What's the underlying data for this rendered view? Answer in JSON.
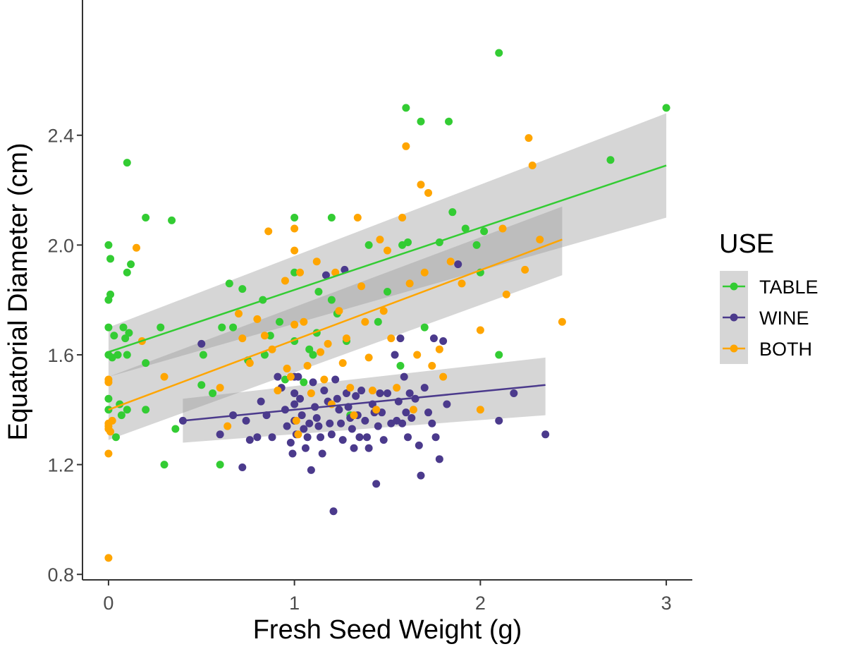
{
  "chart_data": {
    "type": "scatter",
    "title": "",
    "xlabel": "Fresh Seed Weight (g)",
    "ylabel": "Equatorial Diameter (cm)",
    "xlim": [
      -0.14,
      3.14
    ],
    "ylim": [
      0.78,
      2.88
    ],
    "x_ticks": [
      0,
      1,
      2,
      3
    ],
    "x_tick_labels": [
      "0",
      "1",
      "2",
      "3"
    ],
    "y_ticks": [
      0.8,
      1.2,
      1.6,
      2.0,
      2.4
    ],
    "y_tick_labels": [
      "0.8",
      "1.2",
      "1.6",
      "2.0",
      "2.4"
    ],
    "grid": false,
    "legend": {
      "title": "USE",
      "placement": "right"
    },
    "series": [
      {
        "name": "TABLE",
        "color": "#33cc33",
        "trend": {
          "x": [
            0,
            3.0
          ],
          "y": [
            1.61,
            2.29
          ]
        },
        "band": {
          "x": [
            0,
            3.0
          ],
          "lower": [
            1.52,
            2.1
          ],
          "upper": [
            1.7,
            2.48
          ]
        },
        "points": [
          [
            0,
            2.0
          ],
          [
            0,
            1.8
          ],
          [
            0,
            1.7
          ],
          [
            0,
            1.6
          ],
          [
            0,
            1.44
          ],
          [
            0,
            1.4
          ],
          [
            0.01,
            1.95
          ],
          [
            0.01,
            1.82
          ],
          [
            0.02,
            1.59
          ],
          [
            0.03,
            1.67
          ],
          [
            0.04,
            1.3
          ],
          [
            0.05,
            1.6
          ],
          [
            0.06,
            1.42
          ],
          [
            0.07,
            1.38
          ],
          [
            0.08,
            1.7
          ],
          [
            0.09,
            1.66
          ],
          [
            0.1,
            1.9
          ],
          [
            0.1,
            2.3
          ],
          [
            0.1,
            1.6
          ],
          [
            0.1,
            1.4
          ],
          [
            0.11,
            1.68
          ],
          [
            0.12,
            1.93
          ],
          [
            0.2,
            2.1
          ],
          [
            0.2,
            1.57
          ],
          [
            0.2,
            1.4
          ],
          [
            0.28,
            1.7
          ],
          [
            0.3,
            1.2
          ],
          [
            0.34,
            2.09
          ],
          [
            0.36,
            1.33
          ],
          [
            0.5,
            1.49
          ],
          [
            0.51,
            1.6
          ],
          [
            0.56,
            1.46
          ],
          [
            0.6,
            1.2
          ],
          [
            0.61,
            1.7
          ],
          [
            0.65,
            1.86
          ],
          [
            0.67,
            1.7
          ],
          [
            0.72,
            1.84
          ],
          [
            0.75,
            1.58
          ],
          [
            0.83,
            1.8
          ],
          [
            0.84,
            1.6
          ],
          [
            0.87,
            1.67
          ],
          [
            0.92,
            1.72
          ],
          [
            0.95,
            1.51
          ],
          [
            1.0,
            2.1
          ],
          [
            1.0,
            1.9
          ],
          [
            1.0,
            1.65
          ],
          [
            1.05,
            1.5
          ],
          [
            1.08,
            1.62
          ],
          [
            1.1,
            1.6
          ],
          [
            1.12,
            1.68
          ],
          [
            1.13,
            1.83
          ],
          [
            1.2,
            2.1
          ],
          [
            1.2,
            1.8
          ],
          [
            1.23,
            1.75
          ],
          [
            1.28,
            1.65
          ],
          [
            1.3,
            1.38
          ],
          [
            1.4,
            2.0
          ],
          [
            1.45,
            1.72
          ],
          [
            1.5,
            1.83
          ],
          [
            1.57,
            1.56
          ],
          [
            1.58,
            2.0
          ],
          [
            1.6,
            2.5
          ],
          [
            1.61,
            2.01
          ],
          [
            1.68,
            2.45
          ],
          [
            1.7,
            1.7
          ],
          [
            1.78,
            2.01
          ],
          [
            1.83,
            2.45
          ],
          [
            1.85,
            2.12
          ],
          [
            1.92,
            2.06
          ],
          [
            1.98,
            2.0
          ],
          [
            2.0,
            1.9
          ],
          [
            2.02,
            2.05
          ],
          [
            2.1,
            2.7
          ],
          [
            2.1,
            1.6
          ],
          [
            2.7,
            2.31
          ],
          [
            3.0,
            2.5
          ]
        ]
      },
      {
        "name": "WINE",
        "color": "#4b3a8c",
        "trend": {
          "x": [
            0.4,
            2.35
          ],
          "y": [
            1.36,
            1.49
          ]
        },
        "band": {
          "x": [
            0.4,
            2.35
          ],
          "lower": [
            1.28,
            1.38
          ],
          "upper": [
            1.44,
            1.59
          ]
        },
        "points": [
          [
            0.4,
            1.36
          ],
          [
            0.5,
            1.64
          ],
          [
            0.6,
            1.31
          ],
          [
            0.67,
            1.38
          ],
          [
            0.72,
            1.19
          ],
          [
            0.74,
            1.36
          ],
          [
            0.76,
            1.29
          ],
          [
            0.8,
            1.3
          ],
          [
            0.82,
            1.43
          ],
          [
            0.85,
            1.38
          ],
          [
            0.88,
            1.3
          ],
          [
            0.91,
            1.52
          ],
          [
            0.93,
            1.48
          ],
          [
            0.95,
            1.4
          ],
          [
            0.96,
            1.34
          ],
          [
            0.98,
            1.28
          ],
          [
            0.99,
            1.24
          ],
          [
            1.0,
            1.52
          ],
          [
            1.0,
            1.46
          ],
          [
            1.0,
            1.42
          ],
          [
            1.0,
            1.36
          ],
          [
            1.01,
            1.31
          ],
          [
            1.02,
            1.52
          ],
          [
            1.03,
            1.44
          ],
          [
            1.04,
            1.38
          ],
          [
            1.05,
            1.33
          ],
          [
            1.06,
            1.26
          ],
          [
            1.07,
            1.3
          ],
          [
            1.08,
            1.35
          ],
          [
            1.09,
            1.18
          ],
          [
            1.1,
            1.5
          ],
          [
            1.11,
            1.41
          ],
          [
            1.12,
            1.37
          ],
          [
            1.13,
            1.34
          ],
          [
            1.14,
            1.3
          ],
          [
            1.15,
            1.24
          ],
          [
            1.16,
            1.47
          ],
          [
            1.17,
            1.89
          ],
          [
            1.18,
            1.43
          ],
          [
            1.19,
            1.35
          ],
          [
            1.2,
            1.31
          ],
          [
            1.21,
            1.03
          ],
          [
            1.22,
            1.51
          ],
          [
            1.23,
            1.44
          ],
          [
            1.24,
            1.4
          ],
          [
            1.25,
            1.35
          ],
          [
            1.26,
            1.29
          ],
          [
            1.27,
            1.91
          ],
          [
            1.28,
            1.46
          ],
          [
            1.29,
            1.41
          ],
          [
            1.3,
            1.37
          ],
          [
            1.31,
            1.33
          ],
          [
            1.32,
            1.26
          ],
          [
            1.33,
            1.45
          ],
          [
            1.34,
            1.38
          ],
          [
            1.35,
            1.3
          ],
          [
            1.36,
            1.47
          ],
          [
            1.38,
            1.36
          ],
          [
            1.39,
            1.3
          ],
          [
            1.4,
            1.26
          ],
          [
            1.42,
            1.42
          ],
          [
            1.43,
            1.39
          ],
          [
            1.44,
            1.13
          ],
          [
            1.45,
            1.34
          ],
          [
            1.46,
            1.46
          ],
          [
            1.47,
            1.39
          ],
          [
            1.48,
            1.29
          ],
          [
            1.5,
            1.46
          ],
          [
            1.52,
            1.35
          ],
          [
            1.54,
            1.6
          ],
          [
            1.55,
            1.36
          ],
          [
            1.56,
            1.43
          ],
          [
            1.57,
            1.66
          ],
          [
            1.58,
            1.35
          ],
          [
            1.59,
            1.52
          ],
          [
            1.6,
            1.39
          ],
          [
            1.61,
            1.3
          ],
          [
            1.62,
            1.46
          ],
          [
            1.63,
            1.37
          ],
          [
            1.65,
            1.44
          ],
          [
            1.67,
            1.27
          ],
          [
            1.68,
            1.16
          ],
          [
            1.7,
            1.48
          ],
          [
            1.72,
            1.39
          ],
          [
            1.74,
            1.35
          ],
          [
            1.75,
            1.66
          ],
          [
            1.76,
            1.3
          ],
          [
            1.78,
            1.22
          ],
          [
            1.8,
            1.65
          ],
          [
            1.82,
            1.42
          ],
          [
            1.88,
            1.93
          ],
          [
            2.1,
            1.36
          ],
          [
            2.18,
            1.46
          ],
          [
            2.35,
            1.31
          ]
        ]
      },
      {
        "name": "BOTH",
        "color": "#ffa500",
        "trend": {
          "x": [
            0,
            2.44
          ],
          "y": [
            1.4,
            2.02
          ]
        },
        "band": {
          "x": [
            0,
            2.44
          ],
          "lower": [
            1.29,
            1.89
          ],
          "upper": [
            1.52,
            2.14
          ]
        },
        "points": [
          [
            0,
            1.51
          ],
          [
            0,
            1.5
          ],
          [
            0,
            1.35
          ],
          [
            0,
            1.34
          ],
          [
            0,
            1.33
          ],
          [
            0,
            1.24
          ],
          [
            0,
            0.86
          ],
          [
            0.01,
            1.32
          ],
          [
            0.02,
            1.36
          ],
          [
            0.15,
            1.99
          ],
          [
            0.18,
            1.65
          ],
          [
            0.3,
            1.52
          ],
          [
            0.6,
            1.48
          ],
          [
            0.64,
            1.34
          ],
          [
            0.7,
            1.75
          ],
          [
            0.72,
            1.66
          ],
          [
            0.76,
            1.57
          ],
          [
            0.8,
            1.73
          ],
          [
            0.84,
            1.67
          ],
          [
            0.86,
            2.05
          ],
          [
            0.88,
            1.62
          ],
          [
            0.91,
            1.47
          ],
          [
            0.95,
            1.87
          ],
          [
            0.96,
            1.55
          ],
          [
            0.98,
            1.52
          ],
          [
            1.0,
            2.06
          ],
          [
            1.0,
            1.98
          ],
          [
            1.0,
            1.71
          ],
          [
            1.01,
            1.36
          ],
          [
            1.02,
            1.31
          ],
          [
            1.03,
            1.9
          ],
          [
            1.05,
            1.72
          ],
          [
            1.07,
            1.56
          ],
          [
            1.09,
            1.46
          ],
          [
            1.12,
            1.94
          ],
          [
            1.14,
            1.61
          ],
          [
            1.16,
            1.51
          ],
          [
            1.18,
            1.64
          ],
          [
            1.2,
            1.42
          ],
          [
            1.22,
            1.9
          ],
          [
            1.24,
            1.76
          ],
          [
            1.26,
            1.57
          ],
          [
            1.28,
            1.66
          ],
          [
            1.3,
            1.48
          ],
          [
            1.32,
            1.38
          ],
          [
            1.34,
            2.1
          ],
          [
            1.36,
            1.85
          ],
          [
            1.38,
            1.72
          ],
          [
            1.4,
            1.59
          ],
          [
            1.42,
            1.47
          ],
          [
            1.44,
            1.4
          ],
          [
            1.46,
            2.02
          ],
          [
            1.48,
            1.76
          ],
          [
            1.5,
            1.98
          ],
          [
            1.52,
            1.66
          ],
          [
            1.55,
            1.48
          ],
          [
            1.58,
            2.1
          ],
          [
            1.6,
            2.36
          ],
          [
            1.62,
            1.86
          ],
          [
            1.64,
            1.4
          ],
          [
            1.66,
            1.6
          ],
          [
            1.68,
            2.22
          ],
          [
            1.7,
            1.9
          ],
          [
            1.72,
            2.19
          ],
          [
            1.74,
            1.56
          ],
          [
            1.78,
            1.62
          ],
          [
            1.8,
            1.52
          ],
          [
            1.84,
            1.94
          ],
          [
            1.9,
            1.86
          ],
          [
            2.0,
            1.69
          ],
          [
            2.0,
            1.4
          ],
          [
            2.12,
            2.06
          ],
          [
            2.14,
            1.82
          ],
          [
            2.24,
            1.91
          ],
          [
            2.26,
            2.39
          ],
          [
            2.28,
            2.29
          ],
          [
            2.32,
            2.02
          ],
          [
            2.44,
            1.72
          ]
        ]
      }
    ]
  }
}
